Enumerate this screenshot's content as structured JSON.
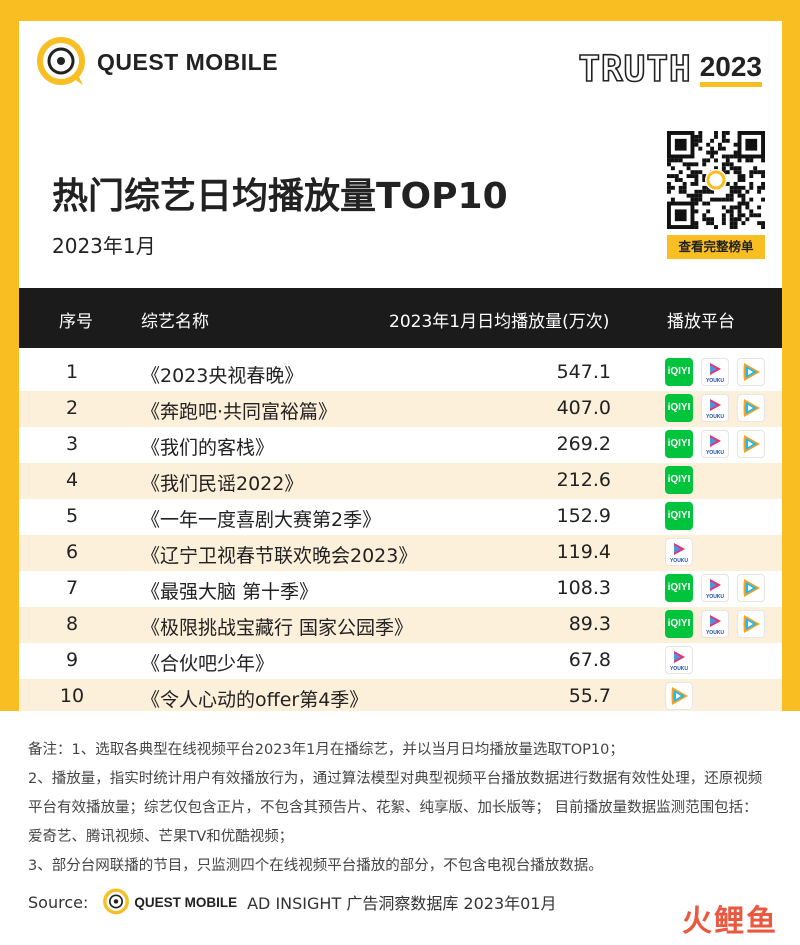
{
  "brand": {
    "logo_text": "QUEST MOBILE",
    "truth_word": "TRUTH",
    "truth_year": "2023"
  },
  "title": "热门综艺日均播放量TOP10",
  "subtitle": "2023年1月",
  "qr_button": "查看完整榜单",
  "table": {
    "headers": {
      "rank": "序号",
      "name": "综艺名称",
      "value": "2023年1月日均播放量(万次)",
      "platform": "播放平台"
    },
    "rows": [
      {
        "rank": "1",
        "name": "《2023央视春晚》",
        "value": "547.1",
        "platforms": [
          "iqiyi",
          "youku",
          "tencent"
        ]
      },
      {
        "rank": "2",
        "name": "《奔跑吧·共同富裕篇》",
        "value": "407.0",
        "platforms": [
          "iqiyi",
          "youku",
          "tencent"
        ]
      },
      {
        "rank": "3",
        "name": "《我们的客栈》",
        "value": "269.2",
        "platforms": [
          "iqiyi",
          "youku",
          "tencent"
        ]
      },
      {
        "rank": "4",
        "name": "《我们民谣2022》",
        "value": "212.6",
        "platforms": [
          "iqiyi"
        ]
      },
      {
        "rank": "5",
        "name": "《一年一度喜剧大赛第2季》",
        "value": "152.9",
        "platforms": [
          "iqiyi"
        ]
      },
      {
        "rank": "6",
        "name": "《辽宁卫视春节联欢晚会2023》",
        "value": "119.4",
        "platforms": [
          "youku"
        ]
      },
      {
        "rank": "7",
        "name": "《最强大脑 第十季》",
        "value": "108.3",
        "platforms": [
          "iqiyi",
          "youku",
          "tencent"
        ]
      },
      {
        "rank": "8",
        "name": "《极限挑战宝藏行 国家公园季》",
        "value": "89.3",
        "platforms": [
          "iqiyi",
          "youku",
          "tencent"
        ]
      },
      {
        "rank": "9",
        "name": "《合伙吧少年》",
        "value": "67.8",
        "platforms": [
          "youku"
        ]
      },
      {
        "rank": "10",
        "name": "《令人心动的offer第4季》",
        "value": "55.7",
        "platforms": [
          "tencent"
        ]
      }
    ]
  },
  "platform_labels": {
    "iqiyi": "iQIYI",
    "youku": "YOUKU"
  },
  "notes": [
    "备注：1、选取各典型在线视频平台2023年1月在播综艺，并以当月日均播放量选取TOP10；",
    "2、播放量，指实时统计用户有效播放行为，通过算法模型对典型视频平台播放数据进行数据有效性处理，还原视频平台有效播放量；综艺仅包含正片，不包含其预告片、花絮、纯享版、加长版等；  目前播放量数据监测范围包括：爱奇艺、腾讯视频、芒果TV和优酷视频；",
    "3、部分台网联播的节目，只监测四个在线视频平台播放的部分，不包含电视台播放数据。"
  ],
  "source": {
    "label": "Source:",
    "logo_text": "QUEST MOBILE",
    "text": "AD INSIGHT 广告洞察数据库 2023年01月"
  },
  "watermark": "火鲤鱼",
  "colors": {
    "accent": "#F8BE22",
    "header_bg": "#1b1b1b",
    "alt_row": "#FDF0DA",
    "iqiyi": "#00C43C"
  }
}
